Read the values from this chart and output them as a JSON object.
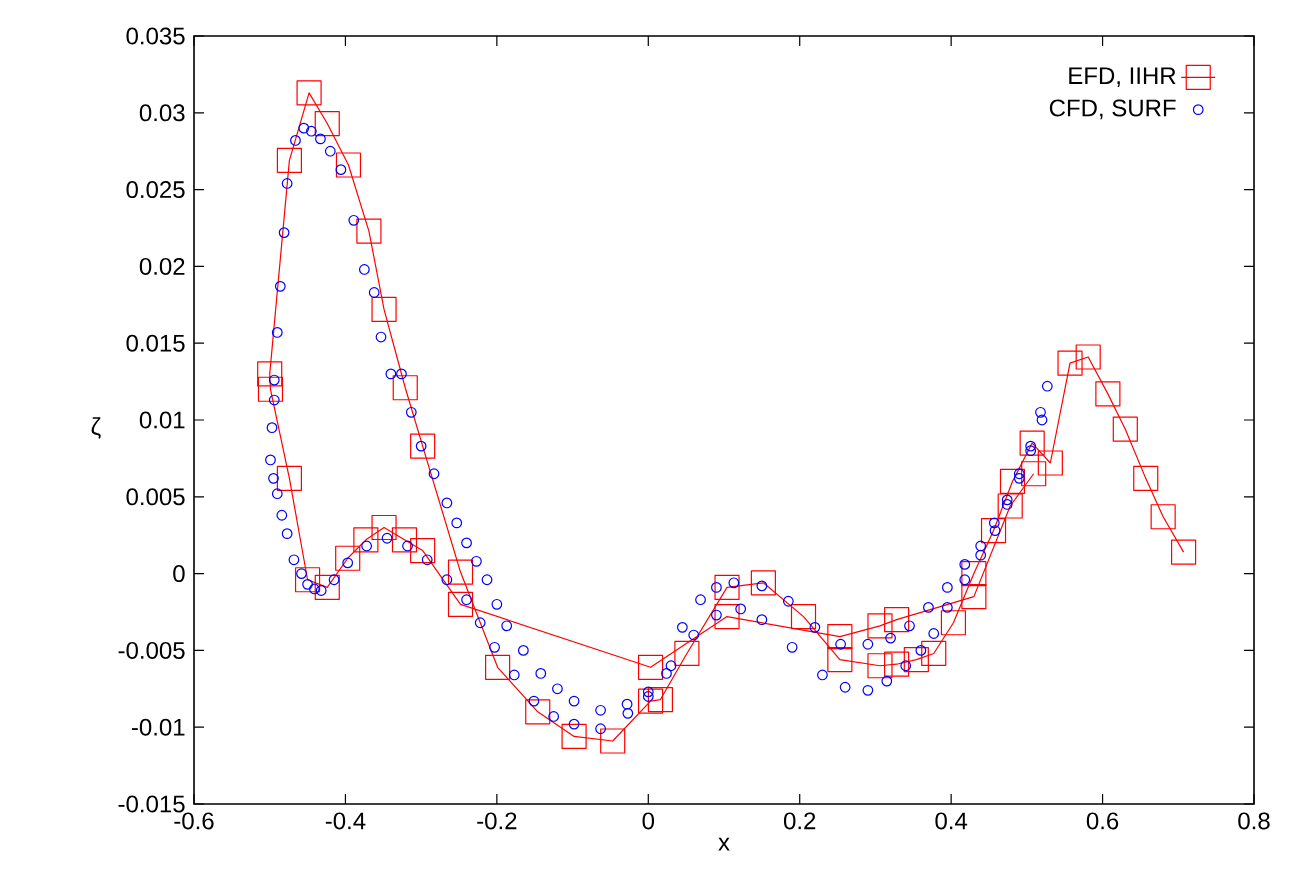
{
  "chart_data": {
    "type": "line",
    "xlabel": "x",
    "ylabel": "ζ",
    "legend": "top right",
    "xlim": [
      -0.6,
      0.8
    ],
    "ylim": [
      -0.015,
      0.035
    ],
    "xticks": [
      -0.6,
      -0.4,
      -0.2,
      0,
      0.2,
      0.4,
      0.6,
      0.8
    ],
    "yticks": [
      -0.015,
      -0.01,
      -0.005,
      0,
      0.005,
      0.01,
      0.015,
      0.02,
      0.025,
      0.03,
      0.035
    ],
    "series": [
      {
        "name": "EFD, IIHR",
        "marker": "square",
        "color": "#ff0000",
        "x": [
          0.707,
          0.68,
          0.657,
          0.63,
          0.607,
          0.581,
          0.557,
          0.531,
          0.507,
          0.481,
          0.456,
          0.43,
          0.403,
          0.377,
          0.354,
          0.328,
          0.306,
          0.253,
          0.205,
          0.152,
          0.104,
          0.051,
          0.016,
          0.003,
          -0.047,
          -0.098,
          -0.146,
          -0.199,
          -0.248,
          -0.298,
          -0.321,
          -0.349,
          -0.369,
          -0.396,
          -0.424,
          -0.448,
          -0.474,
          -0.5,
          -0.499,
          -0.474,
          -0.45,
          -0.424,
          -0.397,
          -0.373,
          -0.349,
          -0.322,
          -0.298,
          -0.248,
          0.003,
          0.104,
          0.253,
          0.306,
          0.328,
          0.43,
          0.478,
          0.509
        ],
        "values": [
          0.0014,
          0.0037,
          0.0062,
          0.0094,
          0.0117,
          0.0141,
          0.0137,
          0.0072,
          0.0085,
          0.006,
          0.0028,
          0.0,
          -0.0032,
          -0.0052,
          -0.0056,
          -0.0059,
          -0.006,
          -0.0056,
          -0.0028,
          -0.0006,
          -0.0009,
          -0.0052,
          -0.0082,
          -0.0083,
          -0.0109,
          -0.0106,
          -0.009,
          -0.0061,
          0.0001,
          0.0083,
          0.0121,
          0.0172,
          0.0223,
          0.0266,
          0.0293,
          0.0313,
          0.0269,
          0.013,
          0.012,
          0.0062,
          -0.0004,
          -0.0009,
          0.001,
          0.0022,
          0.003,
          0.0022,
          0.0015,
          -0.002,
          -0.0061,
          -0.0028,
          -0.0041,
          -0.0034,
          -0.003,
          -0.0015,
          0.0044,
          0.0065
        ]
      },
      {
        "name": "CFD, SURF",
        "type": "scatter",
        "marker": "circle",
        "color": "#0000ff",
        "x": [
          0.527,
          0.518,
          0.505,
          0.49,
          0.474,
          0.457,
          0.439,
          0.418,
          0.395,
          0.37,
          0.345,
          0.32,
          0.29,
          0.254,
          0.22,
          0.185,
          0.15,
          0.113,
          0.09,
          0.069,
          0.045,
          0.024,
          0.0,
          -0.028,
          -0.063,
          -0.098,
          -0.12,
          -0.142,
          -0.165,
          -0.187,
          -0.2,
          -0.213,
          -0.227,
          -0.24,
          -0.253,
          -0.266,
          -0.283,
          -0.3,
          -0.313,
          -0.326,
          -0.34,
          -0.353,
          -0.362,
          -0.375,
          -0.389,
          -0.406,
          -0.42,
          -0.433,
          -0.445,
          -0.455,
          -0.466,
          -0.477,
          -0.481,
          -0.486,
          -0.49,
          -0.494,
          -0.494,
          -0.497,
          -0.499,
          -0.495,
          -0.49,
          -0.484,
          -0.477,
          -0.468,
          -0.458,
          -0.45,
          -0.441,
          -0.432,
          -0.415,
          -0.397,
          -0.372,
          -0.345,
          -0.318,
          -0.292,
          -0.266,
          -0.24,
          -0.222,
          -0.203,
          -0.177,
          -0.151,
          -0.125,
          -0.098,
          -0.063,
          -0.027,
          0.0,
          0.03,
          0.06,
          0.09,
          0.122,
          0.15,
          0.19,
          0.23,
          0.26,
          0.29,
          0.315,
          0.34,
          0.36,
          0.377,
          0.395,
          0.418,
          0.439,
          0.458,
          0.474,
          0.49,
          0.505,
          0.52
        ],
        "values": [
          0.0122,
          0.0105,
          0.0083,
          0.0065,
          0.0048,
          0.0033,
          0.0018,
          0.0006,
          -0.0009,
          -0.0022,
          -0.0034,
          -0.0042,
          -0.0046,
          -0.0046,
          -0.0035,
          -0.0018,
          -0.0008,
          -0.0006,
          -0.0009,
          -0.0017,
          -0.0035,
          -0.0065,
          -0.0077,
          -0.0085,
          -0.0089,
          -0.0083,
          -0.0075,
          -0.0065,
          -0.005,
          -0.0034,
          -0.002,
          -0.0004,
          0.0008,
          0.002,
          0.0033,
          0.0046,
          0.0065,
          0.0083,
          0.0105,
          0.013,
          0.013,
          0.0154,
          0.0183,
          0.0198,
          0.023,
          0.0263,
          0.0275,
          0.0283,
          0.0288,
          0.029,
          0.0282,
          0.0254,
          0.0222,
          0.0187,
          0.0157,
          0.0126,
          0.0113,
          0.0095,
          0.0074,
          0.0062,
          0.0052,
          0.0038,
          0.0026,
          0.0009,
          0.0,
          -0.0007,
          -0.001,
          -0.0011,
          -0.0004,
          0.0007,
          0.0018,
          0.0023,
          0.0018,
          0.0009,
          -0.0004,
          -0.0017,
          -0.0032,
          -0.0048,
          -0.0066,
          -0.0083,
          -0.0093,
          -0.0098,
          -0.0101,
          -0.0091,
          -0.008,
          -0.006,
          -0.004,
          -0.0027,
          -0.0023,
          -0.003,
          -0.0048,
          -0.0066,
          -0.0074,
          -0.0076,
          -0.007,
          -0.006,
          -0.005,
          -0.0039,
          -0.0022,
          -0.0004,
          0.0012,
          0.0028,
          0.0045,
          0.0062,
          0.008,
          0.01
        ]
      }
    ]
  }
}
